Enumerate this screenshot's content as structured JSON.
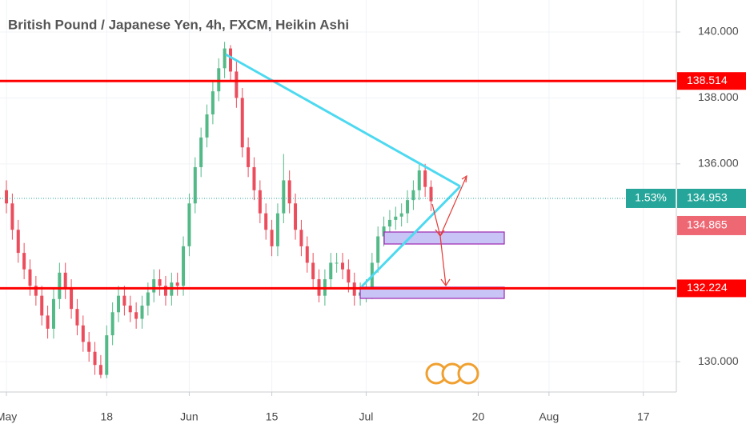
{
  "chart_data": {
    "type": "candlestick",
    "title": "British Pound / Japanese Yen, 4h, FXCM, Heikin Ashi",
    "x": [
      0,
      1,
      2,
      3,
      4,
      5,
      6,
      7,
      8,
      9,
      10,
      11,
      12,
      13,
      14,
      15,
      16,
      17,
      18,
      19,
      20,
      21,
      22,
      23,
      24,
      25,
      26,
      27,
      28,
      29,
      30,
      31,
      32,
      33,
      34,
      35,
      36,
      37,
      38,
      39,
      40,
      41,
      42,
      43,
      44,
      45,
      46,
      47,
      48,
      49,
      50,
      51,
      52,
      53,
      54,
      55,
      56,
      57,
      58,
      59,
      60,
      61,
      62,
      63,
      64,
      65,
      66,
      67,
      68,
      69,
      70,
      71,
      72
    ],
    "open": [
      135.2,
      134.8,
      134.0,
      133.3,
      132.8,
      132.3,
      132.0,
      131.4,
      131.0,
      131.9,
      132.7,
      132.2,
      131.6,
      131.1,
      130.6,
      130.3,
      129.9,
      129.6,
      130.8,
      131.5,
      132.0,
      131.7,
      131.5,
      131.3,
      131.7,
      132.1,
      132.5,
      132.3,
      132.0,
      132.4,
      132.3,
      133.5,
      134.8,
      135.9,
      136.8,
      137.5,
      138.2,
      138.9,
      139.5,
      138.8,
      138.0,
      136.5,
      135.9,
      135.2,
      134.5,
      134.0,
      133.5,
      134.5,
      135.5,
      134.8,
      134.0,
      133.5,
      133.0,
      132.5,
      132.0,
      132.5,
      133.0,
      133.0,
      132.8,
      132.4,
      132.0,
      132.1,
      132.2,
      133.0,
      133.8,
      134.1,
      134.3,
      134.4,
      134.5,
      134.9,
      135.2,
      135.8,
      135.3
    ],
    "high": [
      135.5,
      135.1,
      134.3,
      133.6,
      133.1,
      132.6,
      132.3,
      131.7,
      132.2,
      133.0,
      133.0,
      132.5,
      131.9,
      131.4,
      130.9,
      130.6,
      130.2,
      131.1,
      131.8,
      132.3,
      132.3,
      132.0,
      131.8,
      132.0,
      132.4,
      132.8,
      132.8,
      132.6,
      132.7,
      132.7,
      133.8,
      135.1,
      136.2,
      137.1,
      137.8,
      138.5,
      139.2,
      139.7,
      139.6,
      139.1,
      138.3,
      136.8,
      136.2,
      135.5,
      134.8,
      134.3,
      134.8,
      136.3,
      135.8,
      135.1,
      134.3,
      133.8,
      133.3,
      132.8,
      132.8,
      133.3,
      133.3,
      133.3,
      133.1,
      132.7,
      132.4,
      132.5,
      133.3,
      134.1,
      134.4,
      134.6,
      134.7,
      134.8,
      135.2,
      135.5,
      136.0,
      136.0,
      135.5
    ],
    "low": [
      134.5,
      133.7,
      133.0,
      132.5,
      132.0,
      131.7,
      131.1,
      130.7,
      130.7,
      131.6,
      131.9,
      131.3,
      130.8,
      130.3,
      130.0,
      129.6,
      129.5,
      129.5,
      130.5,
      131.2,
      131.4,
      131.2,
      131.0,
      131.0,
      131.4,
      131.8,
      132.0,
      131.7,
      131.7,
      132.0,
      132.0,
      133.2,
      134.5,
      135.6,
      136.5,
      137.2,
      137.9,
      138.6,
      138.5,
      137.7,
      136.2,
      135.6,
      134.9,
      134.2,
      133.7,
      133.2,
      133.2,
      134.2,
      134.5,
      133.7,
      133.2,
      132.7,
      132.2,
      131.8,
      131.7,
      132.2,
      132.7,
      132.5,
      132.1,
      131.7,
      131.7,
      131.8,
      131.9,
      132.7,
      133.5,
      133.8,
      134.0,
      134.1,
      134.2,
      134.6,
      134.9,
      135.0,
      134.565
    ],
    "close": [
      134.8,
      134.0,
      133.3,
      132.8,
      132.3,
      132.0,
      131.4,
      131.0,
      131.9,
      132.7,
      132.2,
      131.6,
      131.1,
      130.6,
      130.3,
      129.9,
      129.6,
      130.8,
      131.5,
      132.0,
      131.7,
      131.5,
      131.3,
      131.7,
      132.1,
      132.5,
      132.3,
      132.0,
      132.4,
      132.3,
      133.5,
      134.8,
      135.9,
      136.8,
      137.5,
      138.2,
      138.9,
      139.5,
      138.8,
      138.0,
      136.5,
      135.9,
      135.2,
      134.5,
      134.0,
      133.5,
      134.5,
      135.5,
      134.8,
      134.0,
      133.5,
      133.0,
      132.5,
      132.0,
      132.5,
      133.0,
      133.0,
      132.8,
      132.4,
      132.0,
      132.1,
      132.2,
      133.0,
      133.8,
      134.1,
      134.3,
      134.4,
      134.5,
      134.9,
      135.2,
      135.8,
      135.3,
      134.865
    ],
    "up_color": "#53b987",
    "down_color": "#eb4d5c",
    "xlim": [
      -1.09,
      113.6
    ],
    "xticks": [
      {
        "value": 0,
        "label": "May"
      },
      {
        "value": 17,
        "label": "18"
      },
      {
        "value": 31,
        "label": "Jun"
      },
      {
        "value": 45,
        "label": "15"
      },
      {
        "value": 61,
        "label": "Jul"
      },
      {
        "value": 80,
        "label": "20"
      },
      {
        "value": 92,
        "label": "Aug"
      },
      {
        "value": 108,
        "label": "17"
      }
    ],
    "ylim": [
      129.08,
      140.97
    ],
    "yticks": [
      {
        "value": 130,
        "label": "130.000"
      },
      {
        "value": 136,
        "label": "136.000"
      },
      {
        "value": 138,
        "label": "138.000"
      },
      {
        "value": 140,
        "label": "140.000"
      }
    ],
    "grid": true,
    "hlines": [
      {
        "value": 138.514,
        "color": "#ff0000"
      },
      {
        "value": 132.224,
        "color": "#ff0000"
      }
    ],
    "price_line": {
      "value": 134.953,
      "color": "#26a69a",
      "change": {
        "value": 1.53,
        "label": "1.53%"
      }
    }
  }
}
